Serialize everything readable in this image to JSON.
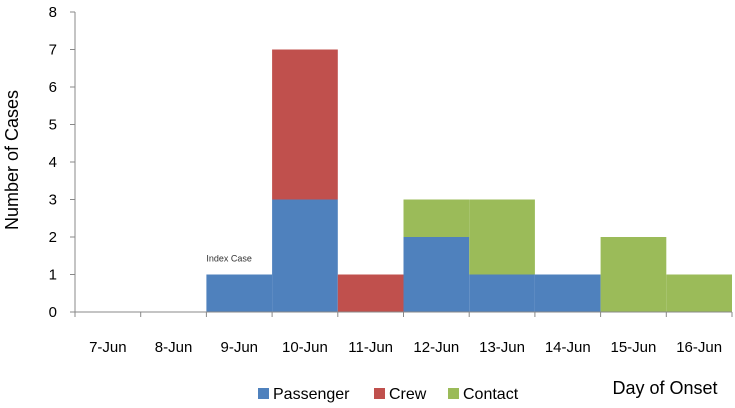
{
  "chart_data": {
    "type": "bar",
    "stacked": true,
    "categories": [
      "7-Jun",
      "8-Jun",
      "9-Jun",
      "10-Jun",
      "11-Jun",
      "12-Jun",
      "13-Jun",
      "14-Jun",
      "15-Jun",
      "16-Jun"
    ],
    "series": [
      {
        "name": "Passenger",
        "color": "#4f81bd",
        "values": [
          0,
          0,
          1,
          3,
          0,
          2,
          1,
          1,
          0,
          0
        ]
      },
      {
        "name": "Crew",
        "color": "#c0504d",
        "values": [
          0,
          0,
          0,
          4,
          1,
          0,
          0,
          0,
          0,
          0
        ]
      },
      {
        "name": "Contact",
        "color": "#9bbb59",
        "values": [
          0,
          0,
          0,
          0,
          0,
          1,
          2,
          0,
          2,
          1
        ]
      }
    ],
    "xlabel": "Day of Onset",
    "ylabel": "Number of Cases",
    "ylim": [
      0,
      8
    ],
    "yticks": [
      "0",
      "1",
      "2",
      "3",
      "4",
      "5",
      "6",
      "7",
      "8"
    ],
    "annotation": {
      "text": "Index Case",
      "category": "9-Jun",
      "y": 1
    },
    "legend_position": "bottom",
    "grid": false
  }
}
